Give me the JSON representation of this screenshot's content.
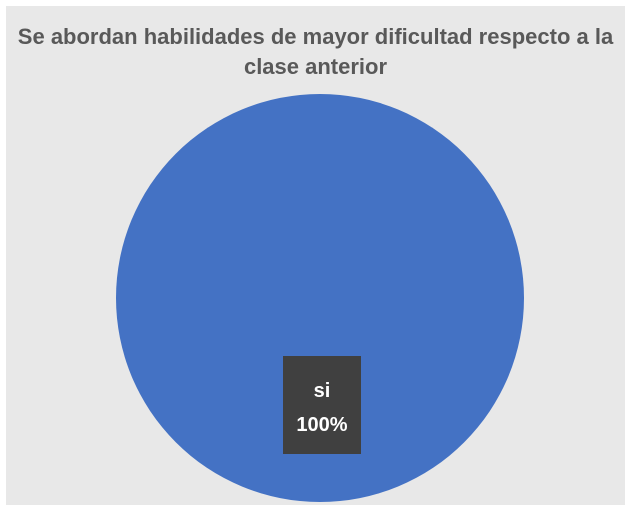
{
  "chart_data": {
    "type": "pie",
    "title": "Se abordan habilidades de mayor dificultad respecto a la clase anterior",
    "slices": [
      {
        "label": "si",
        "value": 100,
        "percent_label": "100%",
        "color": "#4472c4"
      }
    ],
    "data_label_background": "#404040",
    "background": "#e8e8e8",
    "legend": "none"
  }
}
